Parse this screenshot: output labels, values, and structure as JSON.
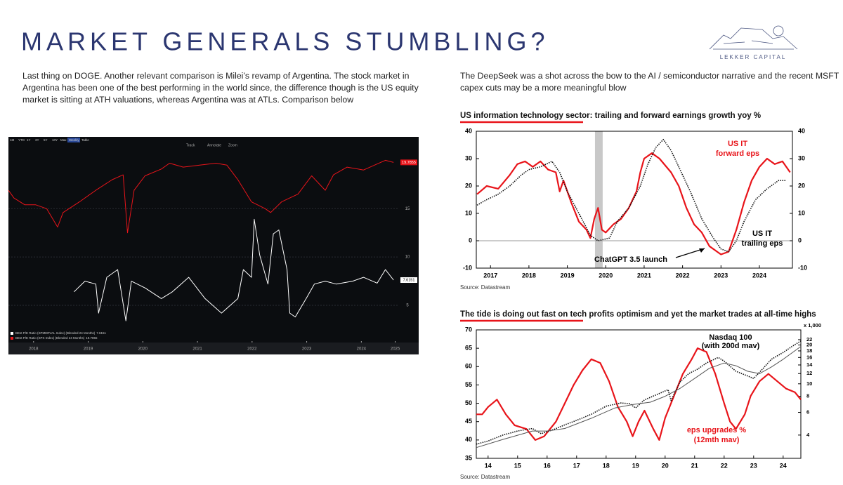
{
  "header": {
    "title": "MARKET GENERALS STUMBLING?",
    "logo": "LEKKER CAPITAL"
  },
  "left_text": "Last thing on DOGE. Another relevant comparison is Milei’s revamp of Argentina. The stock market in Argentina has been one of the best performing in the world since, the difference though is the US equity market is sitting at ATH valuations, whereas Argentina was at ATLs. Comparison below",
  "right_text": "The DeepSeek was a shot across the bow to the AI / semiconductor narrative and the recent MSFT capex cuts may be a more meaningful blow",
  "chart_data": [
    {
      "type": "line",
      "theme": "dark",
      "y_axis_side": "right",
      "grid": true,
      "toolbar": [
        "1M",
        "YTD",
        "1Y",
        "3Y",
        "5Y",
        "10Y",
        "Max",
        "Weekly",
        "Table"
      ],
      "toolbar_tools": [
        "Track",
        "Annotate",
        "Zoom"
      ],
      "xlim": [
        2018,
        2025.15
      ],
      "xticks": [
        {
          "value": 2018.46,
          "label": "2018"
        },
        {
          "value": 2019.46,
          "label": "2019"
        },
        {
          "value": 2020.46,
          "label": "2020"
        },
        {
          "value": 2021.46,
          "label": "2021"
        },
        {
          "value": 2022.46,
          "label": "2022"
        },
        {
          "value": 2023.46,
          "label": "2023"
        },
        {
          "value": 2024.46,
          "label": "2024"
        },
        {
          "value": 2025.08,
          "label": "2025"
        }
      ],
      "ylim": [
        1.3,
        21.7
      ],
      "yticks": [
        5,
        10,
        15
      ],
      "series": [
        {
          "name": "BEst P/E Ratio (SPMERVAL Index) (Blended 24 Months)",
          "color": "#ffffff",
          "x": [
            2019.2,
            2019.4,
            2019.6,
            2019.65,
            2019.8,
            2020.0,
            2020.15,
            2020.25,
            2020.5,
            2020.8,
            2021.0,
            2021.3,
            2021.6,
            2021.9,
            2022.2,
            2022.3,
            2022.45,
            2022.5,
            2022.6,
            2022.75,
            2022.85,
            2022.95,
            2023.1,
            2023.15,
            2023.25,
            2023.45,
            2023.6,
            2023.8,
            2024.0,
            2024.3,
            2024.5,
            2024.75,
            2024.9,
            2025.05
          ],
          "values": [
            6.4,
            7.5,
            7.2,
            4.2,
            7.9,
            8.7,
            3.4,
            7.5,
            6.8,
            5.7,
            6.4,
            7.9,
            5.7,
            4.2,
            5.7,
            8.7,
            7.9,
            13.9,
            10.2,
            7.2,
            12.4,
            12.8,
            8.7,
            4.2,
            3.8,
            5.7,
            7.2,
            7.5,
            7.2,
            7.5,
            7.9,
            7.3,
            8.7,
            7.6151
          ]
        },
        {
          "name": "BEst P/E Ratio (SPX Index) (Blended 24 Months)",
          "color": "#e8141a",
          "x": [
            2018.0,
            2018.1,
            2018.3,
            2018.5,
            2018.7,
            2018.9,
            2019.0,
            2019.3,
            2019.6,
            2019.9,
            2020.1,
            2020.18,
            2020.3,
            2020.5,
            2020.8,
            2020.95,
            2021.2,
            2021.5,
            2021.8,
            2022.0,
            2022.2,
            2022.45,
            2022.7,
            2022.8,
            2023.0,
            2023.3,
            2023.55,
            2023.8,
            2023.95,
            2024.2,
            2024.5,
            2024.7,
            2024.9,
            2025.05
          ],
          "values": [
            16.9,
            16.1,
            15.4,
            15.4,
            15,
            13.1,
            14.6,
            15.7,
            16.9,
            18,
            18.5,
            12.5,
            16.9,
            18.4,
            19.1,
            19.7,
            19.3,
            19.5,
            19.7,
            19.5,
            18,
            15.7,
            15,
            14.6,
            15.7,
            16.5,
            18.4,
            16.9,
            18.5,
            19.3,
            19,
            19.5,
            20,
            19.7855
          ]
        }
      ]
    },
    {
      "type": "line",
      "title": "US information technology sector: trailing and forward earnings growth yoy %",
      "source": "Source: Datastream",
      "xlim": [
        2016.63,
        2024.86
      ],
      "xticks": [
        2017,
        2018,
        2019,
        2020,
        2021,
        2022,
        2023,
        2024
      ],
      "ylim": [
        -10,
        40
      ],
      "yticks": [
        -10,
        0,
        10,
        20,
        30,
        40
      ],
      "y2lim": [
        -10,
        40
      ],
      "y2ticks": [
        -10,
        0,
        10,
        20,
        30,
        40
      ],
      "hline": 0,
      "shaded_x": [
        2019.72,
        2019.92
      ],
      "annotations": [
        "US IT",
        "forward eps",
        "US IT",
        "trailing eps",
        "ChatGPT 3.5 launch"
      ],
      "series": [
        {
          "color": "#e8141a",
          "dash": false,
          "x": [
            2016.65,
            2016.9,
            2017.2,
            2017.5,
            2017.7,
            2017.9,
            2018.1,
            2018.3,
            2018.5,
            2018.7,
            2018.8,
            2018.9,
            2019.1,
            2019.3,
            2019.5,
            2019.6,
            2019.7,
            2019.8,
            2019.9,
            2020.0,
            2020.2,
            2020.4,
            2020.6,
            2020.8,
            2020.9,
            2021.0,
            2021.2,
            2021.4,
            2021.7,
            2021.9,
            2022.1,
            2022.3,
            2022.5,
            2022.7,
            2022.9,
            2023.0,
            2023.2,
            2023.4,
            2023.6,
            2023.8,
            2024.0,
            2024.2,
            2024.4,
            2024.6,
            2024.8
          ],
          "values": [
            17,
            20,
            19,
            24,
            28,
            29,
            27,
            29,
            26,
            25,
            18,
            22,
            14,
            7,
            4,
            1,
            8,
            12,
            4,
            3,
            6,
            8,
            12,
            18,
            25,
            30,
            32,
            30,
            25,
            20,
            12,
            6,
            3,
            -2,
            -4,
            -5,
            -4,
            4,
            14,
            22,
            27,
            30,
            28,
            29,
            25
          ]
        },
        {
          "color": "#111111",
          "dash": true,
          "x": [
            2016.65,
            2016.9,
            2017.2,
            2017.5,
            2017.8,
            2018.0,
            2018.3,
            2018.6,
            2018.8,
            2019.0,
            2019.3,
            2019.6,
            2019.8,
            2020.1,
            2020.3,
            2020.6,
            2020.9,
            2021.1,
            2021.3,
            2021.5,
            2021.7,
            2021.9,
            2022.2,
            2022.5,
            2022.8,
            2023.0,
            2023.2,
            2023.4,
            2023.6,
            2023.9,
            2024.2,
            2024.5,
            2024.7
          ],
          "values": [
            13,
            15,
            17,
            20,
            24,
            26,
            27,
            29,
            25,
            18,
            10,
            2,
            0,
            1,
            7,
            12,
            20,
            28,
            34,
            37,
            33,
            27,
            18,
            8,
            1,
            -3,
            -4,
            0,
            7,
            15,
            19,
            22,
            22
          ]
        }
      ]
    },
    {
      "type": "line",
      "title": "The tide is doing out fast on tech profits optimism and yet the market trades at all-time highs",
      "source": "Source: Datastream",
      "xlim": [
        13.6,
        24.6
      ],
      "xticks": [
        14,
        15,
        16,
        17,
        18,
        19,
        20,
        21,
        22,
        23,
        24
      ],
      "ylim": [
        35,
        70
      ],
      "yticks": [
        35,
        40,
        45,
        50,
        55,
        60,
        65,
        70
      ],
      "y2lim": [
        2.64,
        26.2
      ],
      "y2scale": "log",
      "y2ticks": [
        4,
        6,
        8,
        10,
        12,
        14,
        16,
        18,
        20,
        22
      ],
      "y2_unit": "x 1,000",
      "annotations": [
        "Nasdaq 100",
        "(with 200d mav)",
        "eps upgrades %",
        "(12mth mav)"
      ],
      "series": [
        {
          "color": "#e8141a",
          "dash": false,
          "x": [
            13.6,
            13.8,
            14.0,
            14.3,
            14.6,
            14.9,
            15.3,
            15.6,
            15.9,
            16.3,
            16.6,
            16.9,
            17.2,
            17.5,
            17.8,
            18.1,
            18.4,
            18.7,
            18.9,
            19.1,
            19.3,
            19.6,
            19.8,
            20.0,
            20.3,
            20.6,
            20.9,
            21.1,
            21.4,
            21.7,
            22.0,
            22.2,
            22.4,
            22.7,
            22.9,
            23.2,
            23.5,
            23.8,
            24.1,
            24.4,
            24.6
          ],
          "values": [
            47,
            47,
            49,
            51,
            47,
            44,
            43,
            40,
            41,
            45,
            50,
            55,
            59,
            62,
            61,
            56,
            49,
            45,
            41,
            45,
            48,
            43,
            40,
            46,
            52,
            58,
            62,
            65,
            64,
            58,
            50,
            45,
            43,
            47,
            52,
            56,
            58,
            56,
            54,
            53,
            51
          ]
        },
        {
          "color": "#111111",
          "dash": true,
          "axis": "y2",
          "x": [
            13.6,
            14.0,
            14.5,
            15.0,
            15.5,
            15.8,
            16.2,
            16.6,
            17.0,
            17.5,
            18.0,
            18.5,
            18.8,
            19.0,
            19.3,
            19.8,
            20.1,
            20.2,
            20.5,
            20.8,
            21.1,
            21.4,
            21.8,
            22.0,
            22.4,
            22.8,
            23.0,
            23.3,
            23.6,
            24.0,
            24.3,
            24.6
          ],
          "values": [
            3.4,
            3.6,
            4.0,
            4.3,
            4.5,
            4.1,
            4.4,
            4.8,
            5.2,
            5.8,
            6.7,
            7.1,
            7.0,
            6.5,
            7.5,
            8.4,
            9.0,
            7.4,
            10.3,
            12.0,
            13.0,
            14.5,
            16.0,
            15.0,
            12.5,
            11.5,
            11.0,
            13.0,
            15.5,
            17.5,
            19.5,
            21.5
          ]
        },
        {
          "color": "#555555",
          "dash": false,
          "axis": "y2",
          "x": [
            13.6,
            14.5,
            15.5,
            16.0,
            16.6,
            17.5,
            18.3,
            18.9,
            19.5,
            20.0,
            20.5,
            21.0,
            21.5,
            22.0,
            22.4,
            22.8,
            23.2,
            23.6,
            24.0,
            24.6
          ],
          "values": [
            3.2,
            3.7,
            4.3,
            4.3,
            4.5,
            5.4,
            6.5,
            6.9,
            7.2,
            8.0,
            9.2,
            11.0,
            13.2,
            14.5,
            13.8,
            12.5,
            12.0,
            13.5,
            15.5,
            19.5
          ]
        }
      ]
    }
  ]
}
